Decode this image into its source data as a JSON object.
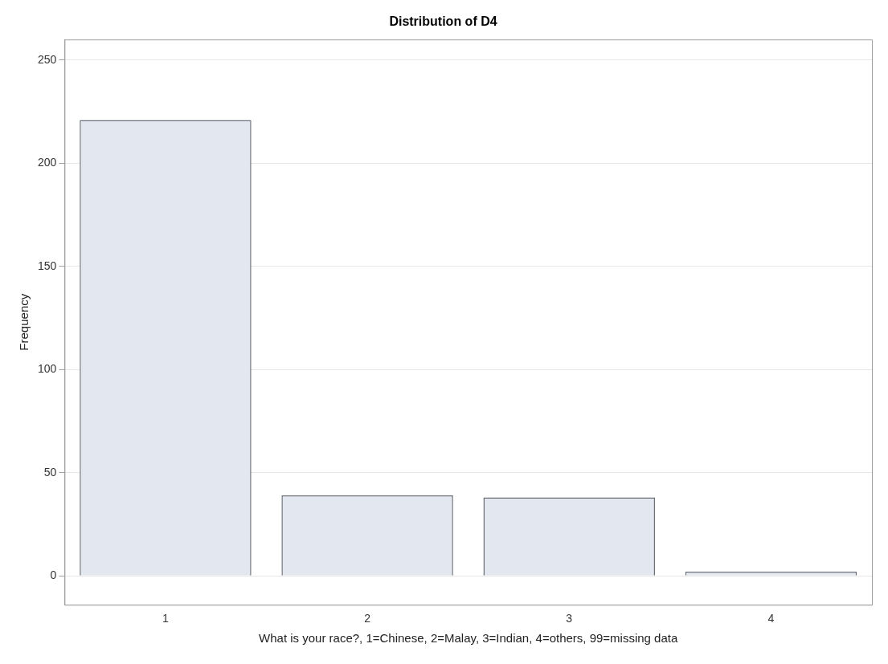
{
  "chart_data": {
    "type": "bar",
    "title": "Distribution of D4",
    "xlabel": "What is your race?, 1=Chinese, 2=Malay, 3=Indian, 4=others, 99=missing data",
    "ylabel": "Frequency",
    "categories": [
      "1",
      "2",
      "3",
      "4"
    ],
    "values": [
      221,
      39,
      38,
      2
    ],
    "color": "#e3e7f0",
    "ylim": [
      -14,
      260
    ],
    "yticks": [
      0,
      50,
      100,
      150,
      200,
      250
    ],
    "grid": "y",
    "legend": false
  }
}
